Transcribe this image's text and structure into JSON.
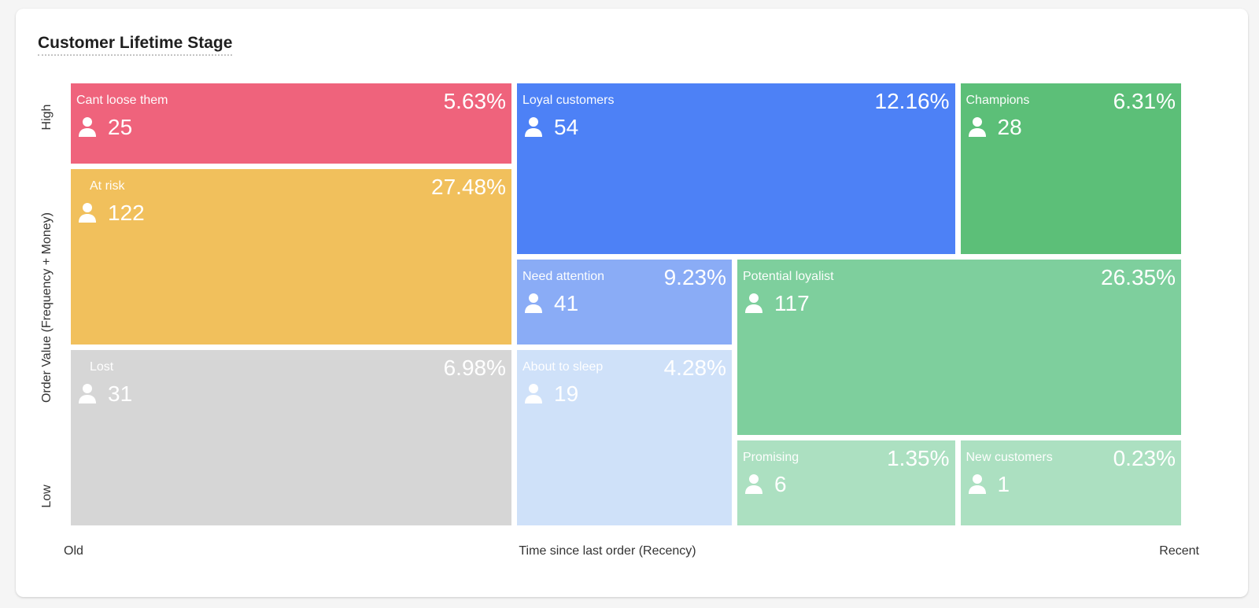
{
  "title": "Customer Lifetime Stage",
  "axes": {
    "y_high": "High",
    "y_title": "Order Value (Frequency + Money)",
    "y_low": "Low",
    "x_old": "Old",
    "x_title": "Time since last order (Recency)",
    "x_recent": "Recent"
  },
  "icon": "user-icon",
  "chart_data": {
    "type": "heatmap",
    "title": "Customer Lifetime Stage",
    "xlabel": "Time since last order (Recency)",
    "ylabel": "Order Value (Frequency + Money)",
    "x_ends": [
      "Old",
      "Recent"
    ],
    "y_ends": [
      "Low",
      "High"
    ],
    "segments": [
      {
        "name": "Cant loose them",
        "count": "25",
        "percent": "5.63%",
        "color": "#ef637c",
        "cols": [
          0,
          2
        ],
        "rows": [
          0,
          1
        ]
      },
      {
        "name": "At risk",
        "count": "122",
        "percent": "27.48%",
        "color": "#f1c05c",
        "cols": [
          0,
          2
        ],
        "rows": [
          1,
          3
        ]
      },
      {
        "name": "Lost",
        "count": "31",
        "percent": "6.98%",
        "color": "#d6d6d6",
        "cols": [
          0,
          2
        ],
        "rows": [
          3,
          5
        ]
      },
      {
        "name": "Loyal customers",
        "count": "54",
        "percent": "12.16%",
        "color": "#4d81f6",
        "cols": [
          2,
          4
        ],
        "rows": [
          0,
          2
        ]
      },
      {
        "name": "Champions",
        "count": "28",
        "percent": "6.31%",
        "color": "#5cbf78",
        "cols": [
          4,
          5
        ],
        "rows": [
          0,
          2
        ]
      },
      {
        "name": "Need attention",
        "count": "41",
        "percent": "9.23%",
        "color": "#8aacf6",
        "cols": [
          2,
          3
        ],
        "rows": [
          2,
          3
        ]
      },
      {
        "name": "About to sleep",
        "count": "19",
        "percent": "4.28%",
        "color": "#cfe1f9",
        "cols": [
          2,
          3
        ],
        "rows": [
          3,
          5
        ]
      },
      {
        "name": "Potential loyalist",
        "count": "117",
        "percent": "26.35%",
        "color": "#7ecf9d",
        "cols": [
          3,
          5
        ],
        "rows": [
          2,
          4
        ]
      },
      {
        "name": "Promising",
        "count": "6",
        "percent": "1.35%",
        "color": "#ace0c1",
        "cols": [
          3,
          4
        ],
        "rows": [
          4,
          5
        ]
      },
      {
        "name": "New customers",
        "count": "1",
        "percent": "0.23%",
        "color": "#ace0c1",
        "cols": [
          4,
          5
        ],
        "rows": [
          4,
          5
        ]
      }
    ]
  }
}
